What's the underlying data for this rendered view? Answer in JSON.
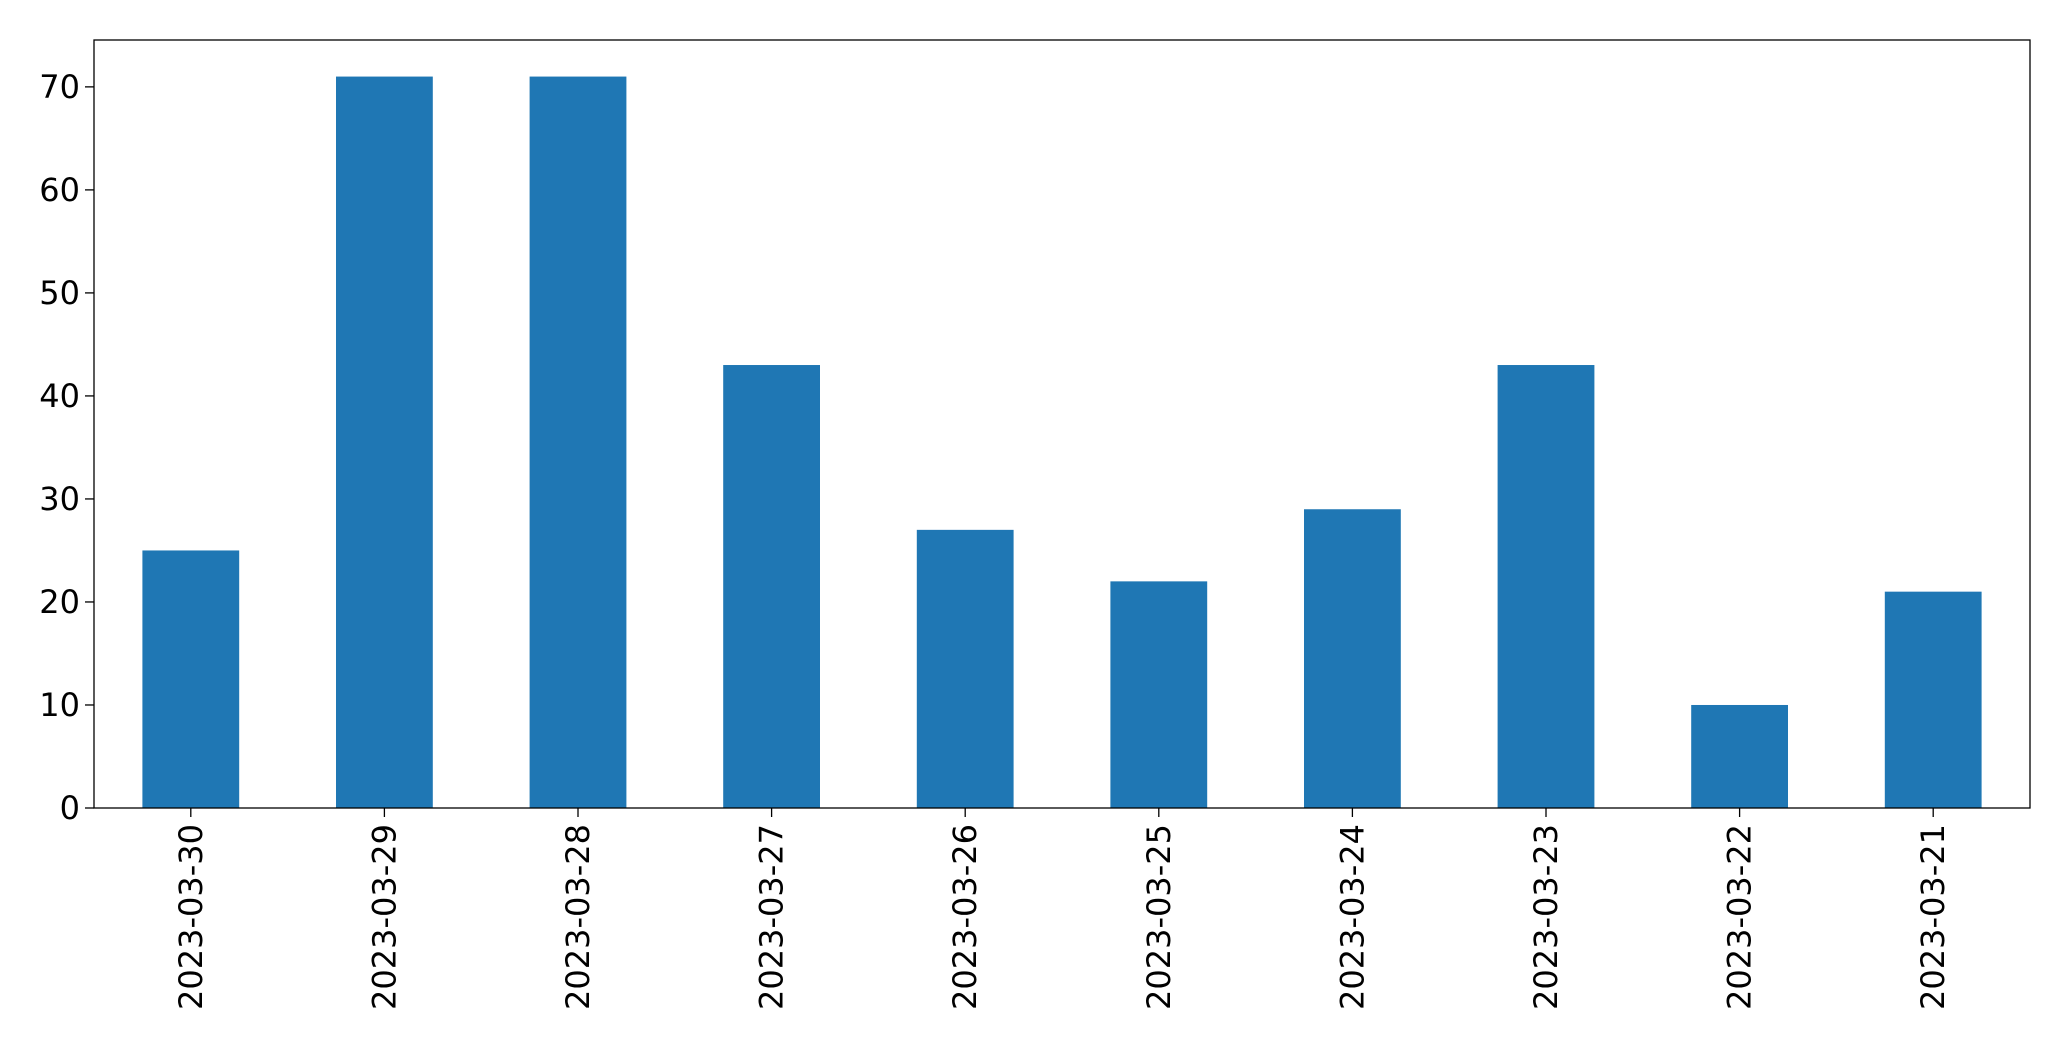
{
  "chart_data": {
    "type": "bar",
    "categories": [
      "2023-03-30",
      "2023-03-29",
      "2023-03-28",
      "2023-03-27",
      "2023-03-26",
      "2023-03-25",
      "2023-03-24",
      "2023-03-23",
      "2023-03-22",
      "2023-03-21"
    ],
    "values": [
      25,
      71,
      71,
      43,
      27,
      22,
      29,
      43,
      10,
      21
    ],
    "color": "#1f77b4",
    "ylim": [
      0,
      74.55
    ],
    "yticks": [
      0,
      10,
      20,
      30,
      40,
      50,
      60,
      70
    ],
    "grid": false
  }
}
